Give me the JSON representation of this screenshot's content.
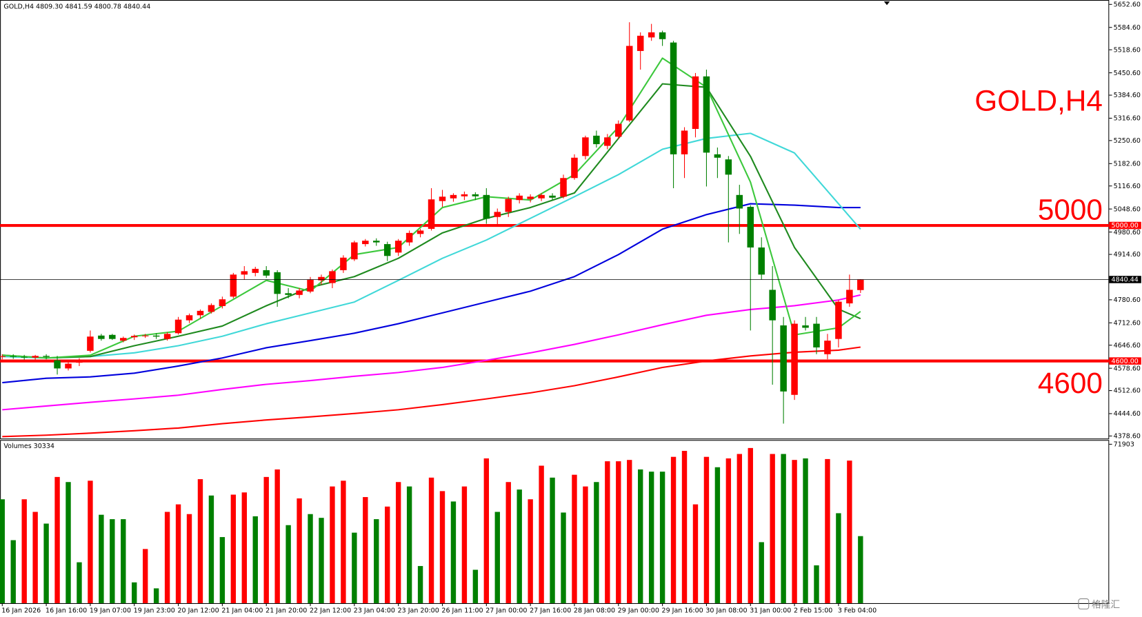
{
  "chart_data": [
    {
      "type": "candlestick",
      "header": "GOLD,H4 4809.30 4841.59 4800.78 4840.44",
      "title": "GOLD,H4",
      "categories": [
        "16 Jan 2026",
        null,
        null,
        null,
        "16 Jan 16:00",
        null,
        null,
        null,
        "19 Jan 07:00",
        null,
        null,
        null,
        "19 Jan 23:00",
        null,
        null,
        null,
        "20 Jan 12:00",
        null,
        null,
        null,
        "21 Jan 04:00",
        null,
        null,
        null,
        "21 Jan 20:00",
        null,
        null,
        null,
        "22 Jan 12:00",
        null,
        null,
        null,
        "23 Jan 04:00",
        null,
        null,
        null,
        "23 Jan 20:00",
        null,
        null,
        null,
        "26 Jan 11:00",
        null,
        null,
        null,
        "27 Jan 00:00",
        null,
        null,
        null,
        "27 Jan 16:00",
        null,
        null,
        null,
        "28 Jan 08:00",
        null,
        null,
        null,
        "29 Jan 00:00",
        null,
        null,
        null,
        "29 Jan 16:00",
        null,
        null,
        null,
        "30 Jan 08:00",
        null,
        null,
        null,
        "31 Jan 00:00",
        null,
        null,
        null,
        "2 Feb 15:00",
        null,
        null,
        null,
        "3 Feb 04:00",
        null,
        null
      ],
      "open": [
        4612,
        4614,
        4612,
        4610,
        4615,
        4602,
        4578,
        4595,
        4630,
        4675,
        4677,
        4660,
        4670,
        4674,
        4675,
        4665,
        4682,
        4720,
        4735,
        4745,
        4762,
        4790,
        4855,
        4860,
        4868,
        4862,
        4800,
        4795,
        4805,
        4838,
        4830,
        4868,
        4900,
        4945,
        4955,
        4945,
        4920,
        4950,
        4975,
        4990,
        5072,
        5080,
        5086,
        5092,
        5090,
        5025,
        5040,
        5075,
        5078,
        5080,
        5088,
        5085,
        5140,
        5205,
        5265,
        5235,
        5262,
        5310,
        5515,
        5555,
        5570,
        5540,
        5210,
        5285,
        5440,
        5210,
        5195,
        5090,
        5055,
        4935,
        4810,
        4705,
        4500,
        4705,
        4710,
        4620,
        4665,
        4770,
        4809.3
      ],
      "high": [
        4620,
        4620,
        4618,
        4618,
        4620,
        4615,
        4600,
        4608,
        4690,
        4680,
        4680,
        4672,
        4678,
        4680,
        4682,
        4685,
        4730,
        4740,
        4752,
        4770,
        4790,
        4860,
        4880,
        4878,
        4880,
        4868,
        4815,
        4815,
        4848,
        4855,
        4870,
        4912,
        4955,
        4960,
        4962,
        4952,
        4960,
        4985,
        4990,
        5110,
        5105,
        5095,
        5100,
        5098,
        5110,
        5050,
        5085,
        5095,
        5092,
        5095,
        5095,
        5150,
        5210,
        5265,
        5280,
        5270,
        5310,
        5600,
        5570,
        5595,
        5575,
        5545,
        5290,
        5450,
        5460,
        5230,
        5205,
        5120,
        5060,
        4965,
        4880,
        4730,
        4720,
        4730,
        4730,
        4680,
        4780,
        4855,
        4841.59
      ],
      "low": [
        4605,
        4606,
        4604,
        4604,
        4605,
        4560,
        4572,
        4585,
        4625,
        4660,
        4662,
        4655,
        4662,
        4668,
        4665,
        4660,
        4678,
        4712,
        4725,
        4740,
        4755,
        4785,
        4840,
        4850,
        4845,
        4760,
        4785,
        4785,
        4800,
        4825,
        4815,
        4860,
        4895,
        4938,
        4940,
        4895,
        4910,
        4940,
        4965,
        4985,
        5055,
        5070,
        5075,
        5075,
        5005,
        5000,
        5025,
        5065,
        5068,
        5072,
        5075,
        5080,
        5135,
        5195,
        5230,
        5225,
        5255,
        5305,
        5460,
        5545,
        5530,
        5110,
        5140,
        5260,
        5115,
        5140,
        4950,
        4975,
        4690,
        4840,
        4530,
        4415,
        4485,
        4690,
        4620,
        4605,
        4640,
        4760,
        4800.78
      ],
      "close": [
        4614,
        4612,
        4610,
        4615,
        4612,
        4578,
        4592,
        4600,
        4672,
        4665,
        4665,
        4668,
        4674,
        4675,
        4672,
        4680,
        4722,
        4735,
        4748,
        4765,
        4782,
        4855,
        4865,
        4872,
        4852,
        4798,
        4795,
        4808,
        4840,
        4848,
        4865,
        4905,
        4950,
        4955,
        4950,
        4910,
        4955,
        4978,
        4985,
        5077,
        5085,
        5090,
        5092,
        5086,
        5020,
        5040,
        5078,
        5088,
        5085,
        5090,
        5082,
        5140,
        5200,
        5260,
        5240,
        5260,
        5300,
        5530,
        5560,
        5570,
        5550,
        5210,
        5280,
        5440,
        5215,
        5200,
        5150,
        5050,
        4935,
        4855,
        4720,
        4510,
        4710,
        4698,
        4640,
        4660,
        4775,
        4810,
        4840.44
      ],
      "up_color": "#ff0000",
      "down_color": "#008000",
      "lines": [
        {
          "color": "#ff0000",
          "x": [
            0,
            4,
            8,
            12,
            16,
            20,
            24,
            28,
            32,
            36,
            40,
            44,
            48,
            52,
            56,
            60,
            64,
            68,
            72,
            76,
            78
          ],
          "values": [
            4377,
            4381,
            4387,
            4394,
            4402,
            4415,
            4426,
            4435,
            4445,
            4456,
            4471,
            4488,
            4506,
            4527,
            4553,
            4581,
            4600,
            4615,
            4626,
            4632,
            4641
          ]
        },
        {
          "color": "#ff00ff",
          "x": [
            0,
            4,
            8,
            12,
            16,
            20,
            24,
            28,
            32,
            36,
            40,
            44,
            48,
            52,
            56,
            60,
            64,
            68,
            72,
            76,
            78
          ],
          "values": [
            4456,
            4467,
            4478,
            4488,
            4499,
            4516,
            4531,
            4542,
            4555,
            4566,
            4581,
            4602,
            4624,
            4649,
            4677,
            4707,
            4735,
            4752,
            4763,
            4780,
            4795
          ]
        },
        {
          "color": "#0000dd",
          "x": [
            0,
            4,
            8,
            12,
            16,
            20,
            24,
            28,
            32,
            36,
            40,
            44,
            48,
            52,
            56,
            60,
            64,
            68,
            72,
            76,
            78
          ],
          "values": [
            4536,
            4549,
            4553,
            4564,
            4585,
            4609,
            4639,
            4660,
            4682,
            4710,
            4742,
            4774,
            4806,
            4849,
            4914,
            4989,
            5032,
            5064,
            5060,
            5053,
            5053
          ]
        },
        {
          "color": "#40d8d8",
          "x": [
            0,
            4,
            8,
            12,
            16,
            20,
            24,
            28,
            32,
            36,
            40,
            44,
            48,
            52,
            56,
            60,
            64,
            68,
            72,
            76,
            78
          ],
          "values": [
            4613,
            4609,
            4613,
            4624,
            4645,
            4673,
            4710,
            4742,
            4774,
            4838,
            4903,
            4957,
            5021,
            5085,
            5150,
            5225,
            5257,
            5272,
            5214,
            5064,
            4989
          ]
        },
        {
          "color": "#1f8a1f",
          "x": [
            0,
            4,
            8,
            12,
            16,
            20,
            24,
            28,
            32,
            36,
            40,
            44,
            48,
            52,
            56,
            60,
            64,
            68,
            72,
            76,
            78
          ],
          "values": [
            4617,
            4609,
            4613,
            4645,
            4673,
            4703,
            4763,
            4817,
            4849,
            4903,
            4978,
            5021,
            5053,
            5096,
            5257,
            5418,
            5408,
            5204,
            4935,
            4753,
            4725
          ]
        },
        {
          "color": "#3cc83c",
          "x": [
            0,
            4,
            8,
            12,
            16,
            20,
            24,
            28,
            32,
            36,
            40,
            44,
            48,
            52,
            56,
            60,
            64,
            68,
            72,
            76,
            78
          ],
          "values": [
            4617,
            4609,
            4617,
            4673,
            4688,
            4763,
            4838,
            4806,
            4914,
            4935,
            5053,
            5085,
            5075,
            5150,
            5290,
            5494,
            5408,
            5128,
            4677,
            4698,
            4746
          ]
        }
      ],
      "hlines": [
        {
          "value": 5000,
          "label": "5000",
          "axis_label": "5000.00",
          "color": "#ff0000"
        },
        {
          "value": 4600,
          "label": "4600",
          "axis_label": "4600.00",
          "color": "#ff0000"
        }
      ],
      "last": {
        "value": 4840.44,
        "axis_label": "4840.44"
      },
      "ylim": [
        4371.1,
        5665.5
      ],
      "yticks": [
        {
          "value": 5652.6,
          "label": "5652.60"
        },
        {
          "value": 5584.6,
          "label": "5584.60"
        },
        {
          "value": 5518.6,
          "label": "5518.60"
        },
        {
          "value": 5450.6,
          "label": "5450.60"
        },
        {
          "value": 5384.6,
          "label": "5384.60"
        },
        {
          "value": 5316.6,
          "label": "5316.60"
        },
        {
          "value": 5250.6,
          "label": "5250.60"
        },
        {
          "value": 5182.6,
          "label": "5182.60"
        },
        {
          "value": 5116.6,
          "label": "5116.60"
        },
        {
          "value": 5048.6,
          "label": "5048.60"
        },
        {
          "value": 4980.6,
          "label": "4980.60"
        },
        {
          "value": 4914.6,
          "label": "4914.60"
        },
        {
          "value": 4780.6,
          "label": "4780.60"
        },
        {
          "value": 4712.6,
          "label": "4712.60"
        },
        {
          "value": 4646.6,
          "label": "4646.60"
        },
        {
          "value": 4578.6,
          "label": "4578.60"
        },
        {
          "value": 4512.6,
          "label": "4512.60"
        },
        {
          "value": 4444.6,
          "label": "4444.60"
        },
        {
          "value": 4378.6,
          "label": "4378.60"
        }
      ]
    },
    {
      "type": "bar",
      "title": "Volumes 30334",
      "values": [
        47000,
        28500,
        47000,
        41300,
        36000,
        57100,
        54800,
        18500,
        55400,
        40000,
        38000,
        38000,
        9400,
        24500,
        6700,
        41300,
        44700,
        40300,
        56100,
        48700,
        29900,
        49100,
        50100,
        39300,
        57100,
        60500,
        35300,
        47400,
        40300,
        38600,
        52800,
        55400,
        31900,
        48000,
        38000,
        43700,
        54800,
        52800,
        16800,
        56800,
        50700,
        46000,
        52800,
        15100,
        65500,
        41300,
        54800,
        51400,
        47000,
        62200,
        56800,
        41000,
        58100,
        52800,
        54800,
        64200,
        64200,
        64800,
        60500,
        59500,
        59500,
        66200,
        68900,
        44700,
        66200,
        61500,
        65500,
        67500,
        70200,
        27600,
        67500,
        67500,
        64800,
        65500,
        17100,
        65200,
        40700,
        64500,
        30334
      ],
      "colors": [
        "#008000",
        "#008000",
        "#ff0000",
        "#ff0000",
        "#008000",
        "#ff0000",
        "#008000",
        "#008000",
        "#ff0000",
        "#008000",
        "#008000",
        "#008000",
        "#008000",
        "#ff0000",
        "#008000",
        "#ff0000",
        "#ff0000",
        "#ff0000",
        "#ff0000",
        "#008000",
        "#008000",
        "#ff0000",
        "#ff0000",
        "#008000",
        "#ff0000",
        "#ff0000",
        "#008000",
        "#ff0000",
        "#008000",
        "#008000",
        "#ff0000",
        "#ff0000",
        "#008000",
        "#ff0000",
        "#008000",
        "#ff0000",
        "#ff0000",
        "#008000",
        "#008000",
        "#ff0000",
        "#ff0000",
        "#008000",
        "#ff0000",
        "#008000",
        "#ff0000",
        "#008000",
        "#ff0000",
        "#008000",
        "#ff0000",
        "#ff0000",
        "#008000",
        "#008000",
        "#ff0000",
        "#ff0000",
        "#008000",
        "#ff0000",
        "#ff0000",
        "#ff0000",
        "#008000",
        "#008000",
        "#008000",
        "#ff0000",
        "#ff0000",
        "#ff0000",
        "#ff0000",
        "#008000",
        "#ff0000",
        "#ff0000",
        "#ff0000",
        "#008000",
        "#ff0000",
        "#008000",
        "#ff0000",
        "#008000",
        "#008000",
        "#ff0000",
        "#008000",
        "#ff0000",
        "#008000"
      ],
      "ylim": [
        0,
        73500
      ],
      "yticks": [
        71903
      ]
    }
  ],
  "watermark": "格隆汇"
}
